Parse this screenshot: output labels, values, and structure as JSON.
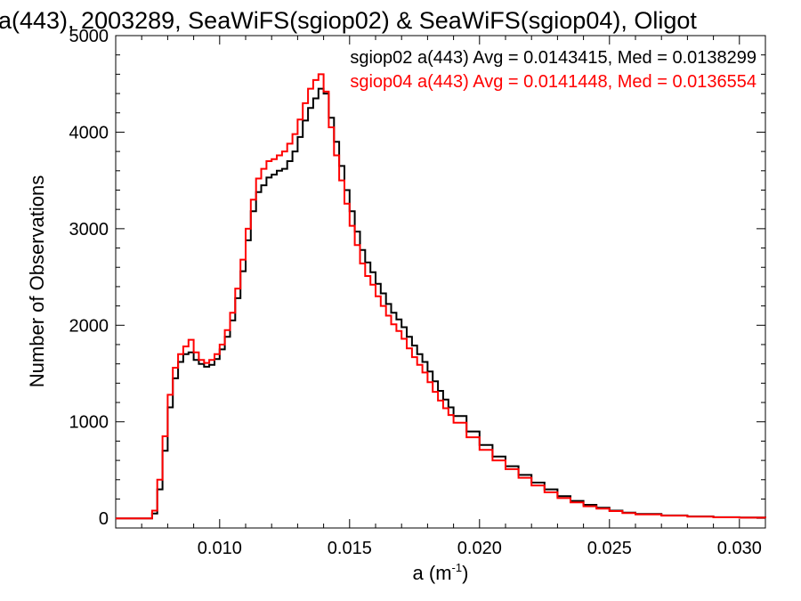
{
  "chart_data": {
    "type": "line",
    "title": "a(443), 2003289, SeaWiFS(sgiop02) & SeaWiFS(sgiop04), Oligot",
    "xlabel": "a (m",
    "xlabel_sup": "-1",
    "xlabel_end": ")",
    "ylabel": "Number of Observations",
    "xlim": [
      0.006,
      0.031
    ],
    "ylim": [
      -100,
      5000
    ],
    "x_ticks": [
      0.01,
      0.015,
      0.02,
      0.025,
      0.03
    ],
    "x_tick_labels": [
      "0.010",
      "0.015",
      "0.020",
      "0.025",
      "0.030"
    ],
    "y_ticks": [
      0,
      1000,
      2000,
      3000,
      4000,
      5000
    ],
    "y_tick_labels": [
      "0",
      "1000",
      "2000",
      "3000",
      "4000",
      "5000"
    ],
    "grid": false,
    "legend_placement": "top-right",
    "series": [
      {
        "name": "sgiop02 a(443) Avg = 0.0143415, Med = 0.0138299",
        "color": "#000000",
        "x": [
          0.006,
          0.007,
          0.0074,
          0.0076,
          0.0078,
          0.008,
          0.0082,
          0.0084,
          0.0086,
          0.0088,
          0.009,
          0.0092,
          0.0094,
          0.0096,
          0.0098,
          0.01,
          0.0102,
          0.0104,
          0.0106,
          0.0108,
          0.011,
          0.0112,
          0.0114,
          0.0116,
          0.0118,
          0.012,
          0.0122,
          0.0124,
          0.0126,
          0.0128,
          0.013,
          0.0132,
          0.0134,
          0.0136,
          0.0138,
          0.014,
          0.0142,
          0.0144,
          0.0146,
          0.0148,
          0.015,
          0.0152,
          0.0154,
          0.0156,
          0.0158,
          0.016,
          0.0162,
          0.0164,
          0.0166,
          0.0168,
          0.017,
          0.0172,
          0.0174,
          0.0176,
          0.0178,
          0.018,
          0.0182,
          0.0184,
          0.0186,
          0.0188,
          0.019,
          0.0195,
          0.02,
          0.0205,
          0.021,
          0.0215,
          0.022,
          0.0225,
          0.023,
          0.0235,
          0.024,
          0.0245,
          0.025,
          0.0255,
          0.026,
          0.027,
          0.028,
          0.029,
          0.03,
          0.031
        ],
        "values": [
          0,
          0,
          50,
          300,
          700,
          1150,
          1450,
          1620,
          1700,
          1720,
          1640,
          1600,
          1570,
          1590,
          1650,
          1750,
          1880,
          2050,
          2280,
          2560,
          2880,
          3180,
          3380,
          3450,
          3530,
          3560,
          3600,
          3620,
          3700,
          3800,
          3950,
          4120,
          4250,
          4350,
          4450,
          4400,
          4150,
          3900,
          3650,
          3400,
          3180,
          2970,
          2780,
          2650,
          2550,
          2430,
          2330,
          2220,
          2130,
          2060,
          1980,
          1880,
          1790,
          1700,
          1620,
          1520,
          1420,
          1320,
          1230,
          1150,
          1060,
          900,
          760,
          640,
          540,
          450,
          370,
          300,
          230,
          180,
          140,
          110,
          80,
          60,
          45,
          30,
          20,
          12,
          8,
          5
        ]
      },
      {
        "name": "sgiop04 a(443) Avg = 0.0141448, Med = 0.0136554",
        "color": "#ff0000",
        "x": [
          0.006,
          0.007,
          0.0074,
          0.0076,
          0.0078,
          0.008,
          0.0082,
          0.0084,
          0.0086,
          0.0088,
          0.009,
          0.0092,
          0.0094,
          0.0096,
          0.0098,
          0.01,
          0.0102,
          0.0104,
          0.0106,
          0.0108,
          0.011,
          0.0112,
          0.0114,
          0.0116,
          0.0118,
          0.012,
          0.0122,
          0.0124,
          0.0126,
          0.0128,
          0.013,
          0.0132,
          0.0134,
          0.0136,
          0.0138,
          0.014,
          0.0142,
          0.0144,
          0.0146,
          0.0148,
          0.015,
          0.0152,
          0.0154,
          0.0156,
          0.0158,
          0.016,
          0.0162,
          0.0164,
          0.0166,
          0.0168,
          0.017,
          0.0172,
          0.0174,
          0.0176,
          0.0178,
          0.018,
          0.0182,
          0.0184,
          0.0186,
          0.0188,
          0.019,
          0.0195,
          0.02,
          0.0205,
          0.021,
          0.0215,
          0.022,
          0.0225,
          0.023,
          0.0235,
          0.024,
          0.0245,
          0.025,
          0.0255,
          0.026,
          0.027,
          0.028,
          0.029,
          0.03,
          0.031
        ],
        "values": [
          0,
          0,
          80,
          400,
          850,
          1280,
          1560,
          1700,
          1780,
          1850,
          1720,
          1640,
          1610,
          1640,
          1700,
          1800,
          1950,
          2130,
          2380,
          2680,
          3000,
          3300,
          3520,
          3620,
          3700,
          3720,
          3760,
          3800,
          3880,
          3980,
          4130,
          4300,
          4450,
          4540,
          4600,
          4420,
          4050,
          3760,
          3500,
          3260,
          3030,
          2830,
          2640,
          2510,
          2420,
          2300,
          2200,
          2100,
          2010,
          1940,
          1860,
          1760,
          1670,
          1590,
          1510,
          1410,
          1310,
          1220,
          1140,
          1070,
          990,
          840,
          710,
          600,
          510,
          420,
          340,
          270,
          210,
          165,
          125,
          100,
          75,
          55,
          40,
          28,
          18,
          11,
          7,
          4
        ]
      }
    ]
  }
}
